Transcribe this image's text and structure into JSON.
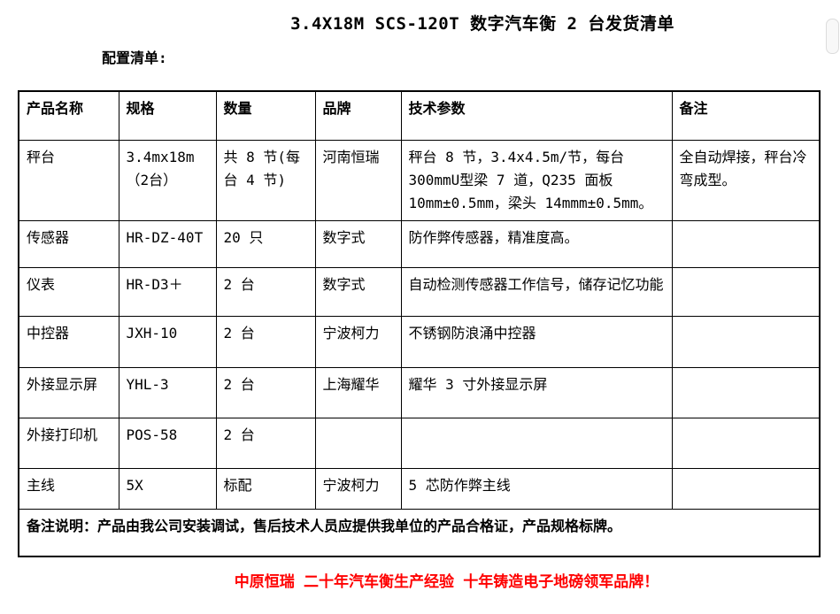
{
  "page": {
    "title": "3.4X18M SCS-120T 数字汽车衡 2 台发货清单",
    "subtitle": "配置清单:",
    "footer": "中原恒瑞 二十年汽车衡生产经验 十年铸造电子地磅领军品牌！",
    "footer_color": "#ff0000"
  },
  "table": {
    "headers": [
      "产品名称",
      "规格",
      "数量",
      "品牌",
      "技术参数",
      "备注"
    ],
    "row_keys": [
      "name",
      "spec",
      "qty",
      "brand",
      "params",
      "note"
    ],
    "rows": [
      {
        "name": "秤台",
        "spec": "3.4mx18m（2台）",
        "qty": "共 8 节(每台 4 节)",
        "brand": "河南恒瑞",
        "params": "秤台 8 节，3.4x4.5m/节，每台 300mmU型梁 7 道，Q235 面板 10mm±0.5mm，梁头 14mmm±0.5mm。",
        "note": "全自动焊接，秤台冷弯成型。"
      },
      {
        "name": "传感器",
        "spec": "HR-DZ-40T",
        "qty": "20 只",
        "brand": "数字式",
        "params": "防作弊传感器，精准度高。",
        "note": ""
      },
      {
        "name": "仪表",
        "spec": "HR-D3＋",
        "qty": "2 台",
        "brand": "数字式",
        "params": "自动检测传感器工作信号，储存记忆功能",
        "note": ""
      },
      {
        "name": "中控器",
        "spec": "JXH-10",
        "qty": "2 台",
        "brand": "宁波柯力",
        "params": "不锈钢防浪涌中控器",
        "note": ""
      },
      {
        "name": "外接显示屏",
        "spec": "YHL-3",
        "qty": "2 台",
        "brand": "上海耀华",
        "params": "耀华 3 寸外接显示屏",
        "note": ""
      },
      {
        "name": "外接打印机",
        "spec": "POS-58",
        "qty": "2 台",
        "brand": "",
        "params": "",
        "note": ""
      },
      {
        "name": "主线",
        "spec": "5X",
        "qty": "标配",
        "brand": "宁波柯力",
        "params": "5 芯防作弊主线",
        "note": ""
      }
    ],
    "remark": "备注说明：产品由我公司安装调试，售后技术人员应提供我单位的产品合格证，产品规格标牌。"
  },
  "scrollbar": {
    "thumb": "vertical-scrollbar-thumb"
  }
}
